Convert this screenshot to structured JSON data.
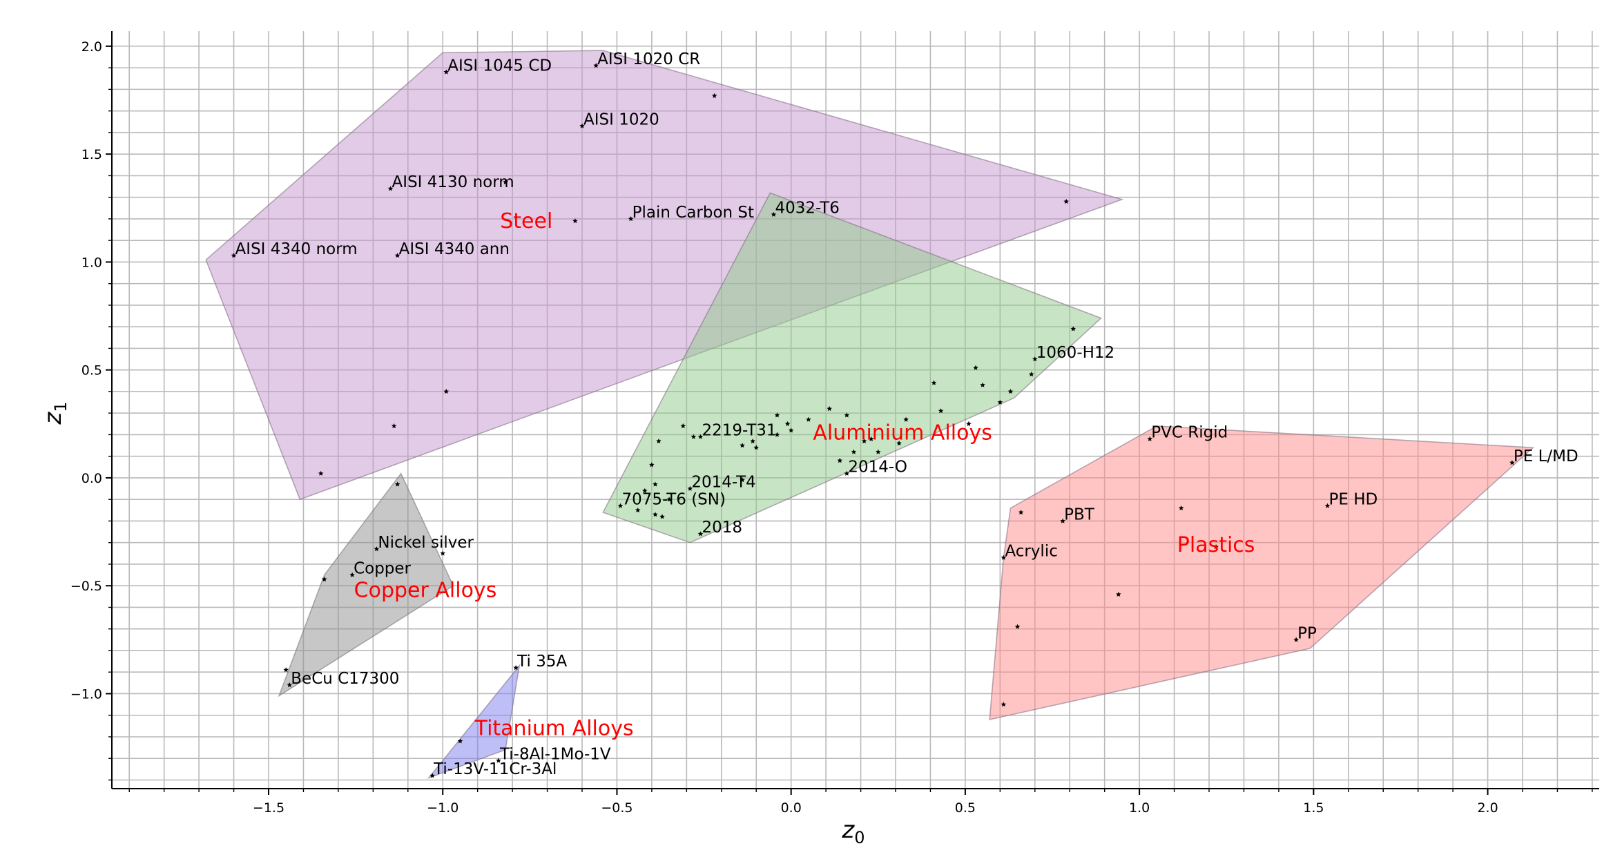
{
  "chart_data": {
    "type": "scatter",
    "title": "",
    "xlabel": "z",
    "xlabel_sub": "0",
    "ylabel": "z",
    "ylabel_sub": "1",
    "xlim": [
      -1.95,
      2.32
    ],
    "ylim": [
      -1.44,
      2.07
    ],
    "x_ticks": [
      -1.5,
      -1.0,
      -0.5,
      0.0,
      0.5,
      1.0,
      1.5,
      2.0
    ],
    "x_tick_labels": [
      "−1.5",
      "−1.0",
      "−0.5",
      "0.0",
      "0.5",
      "1.0",
      "1.5",
      "2.0"
    ],
    "y_ticks": [
      -1.0,
      -0.5,
      0.0,
      0.5,
      1.0,
      1.5,
      2.0
    ],
    "y_tick_labels": [
      "−1.0",
      "−0.5",
      "0.0",
      "0.5",
      "1.0",
      "1.5",
      "2.0"
    ],
    "grid": true,
    "regions": [
      {
        "name": "Steel",
        "color": "#c698cf",
        "label_pos": [
          -0.76,
          1.19
        ],
        "hull": [
          [
            -1.68,
            1.01
          ],
          [
            -1.0,
            1.97
          ],
          [
            -0.54,
            1.98
          ],
          [
            0.95,
            1.29
          ],
          [
            -0.31,
            0.55
          ],
          [
            -1.41,
            -0.1
          ]
        ]
      },
      {
        "name": "Aluminium Alloys",
        "color": "#90cc8a",
        "label_pos": [
          0.32,
          0.21
        ],
        "hull": [
          [
            -0.54,
            -0.16
          ],
          [
            -0.06,
            1.32
          ],
          [
            0.89,
            0.74
          ],
          [
            0.64,
            0.37
          ],
          [
            -0.29,
            -0.3
          ]
        ]
      },
      {
        "name": "Plastics",
        "color": "#ff8a8a",
        "label_pos": [
          1.22,
          -0.31
        ],
        "hull": [
          [
            0.57,
            -1.12
          ],
          [
            0.61,
            -0.37
          ],
          [
            0.63,
            -0.14
          ],
          [
            1.05,
            0.24
          ],
          [
            2.13,
            0.14
          ],
          [
            1.49,
            -0.79
          ]
        ]
      },
      {
        "name": "Copper Alloys",
        "color": "#8f8f8f",
        "label_pos": [
          -1.05,
          -0.52
        ],
        "hull": [
          [
            -1.47,
            -1.01
          ],
          [
            -1.34,
            -0.45
          ],
          [
            -1.12,
            0.02
          ],
          [
            -0.97,
            -0.5
          ]
        ]
      },
      {
        "name": "Titanium Alloys",
        "color": "#8080f0",
        "label_pos": [
          -0.68,
          -1.16
        ],
        "hull": [
          [
            -1.04,
            -1.39
          ],
          [
            -0.78,
            -0.87
          ],
          [
            -0.82,
            -1.26
          ]
        ]
      }
    ],
    "labeled_points": [
      {
        "label": "AISI 1045 CD",
        "x": -0.99,
        "y": 1.88
      },
      {
        "label": "AISI 1020 CR",
        "x": -0.56,
        "y": 1.91
      },
      {
        "label": "AISI 1020",
        "x": -0.6,
        "y": 1.63
      },
      {
        "label": "AISI 4130 norm",
        "x": -1.15,
        "y": 1.34
      },
      {
        "label": "Plain Carbon St",
        "x": -0.46,
        "y": 1.2
      },
      {
        "label": "4032-T6",
        "x": -0.05,
        "y": 1.22
      },
      {
        "label": "AISI 4340 norm",
        "x": -1.6,
        "y": 1.03
      },
      {
        "label": "AISI 4340 ann",
        "x": -1.13,
        "y": 1.03
      },
      {
        "label": "1060-H12",
        "x": 0.7,
        "y": 0.55
      },
      {
        "label": "2219-T31",
        "x": -0.26,
        "y": 0.19
      },
      {
        "label": "2014-O",
        "x": 0.16,
        "y": 0.02
      },
      {
        "label": "2014-T4",
        "x": -0.29,
        "y": -0.05
      },
      {
        "label": "7075-T6 (SN)",
        "x": -0.49,
        "y": -0.13
      },
      {
        "label": "2018",
        "x": -0.26,
        "y": -0.26
      },
      {
        "label": "PVC Rigid",
        "x": 1.03,
        "y": 0.18
      },
      {
        "label": "PE L/MD",
        "x": 2.07,
        "y": 0.07
      },
      {
        "label": "PBT",
        "x": 0.78,
        "y": -0.2
      },
      {
        "label": "PE HD",
        "x": 1.54,
        "y": -0.13
      },
      {
        "label": "Acrylic",
        "x": 0.61,
        "y": -0.37
      },
      {
        "label": "PP",
        "x": 1.45,
        "y": -0.75
      },
      {
        "label": "Nickel silver",
        "x": -1.19,
        "y": -0.33
      },
      {
        "label": "Copper",
        "x": -1.26,
        "y": -0.45
      },
      {
        "label": "BeCu C17300",
        "x": -1.44,
        "y": -0.96
      },
      {
        "label": "Ti 35A",
        "x": -0.79,
        "y": -0.88
      },
      {
        "label": "Ti-8Al-1Mo-1V",
        "x": -0.84,
        "y": -1.31
      },
      {
        "label": "Ti-13V-11Cr-3Al",
        "x": -1.03,
        "y": -1.38
      }
    ],
    "unlabeled_points": [
      {
        "x": -0.22,
        "y": 1.77
      },
      {
        "x": -0.82,
        "y": 1.37
      },
      {
        "x": -0.62,
        "y": 1.19
      },
      {
        "x": 0.79,
        "y": 1.28
      },
      {
        "x": -0.99,
        "y": 0.4
      },
      {
        "x": -1.14,
        "y": 0.24
      },
      {
        "x": -1.35,
        "y": 0.02
      },
      {
        "x": -1.13,
        "y": -0.03
      },
      {
        "x": 0.81,
        "y": 0.69
      },
      {
        "x": 0.53,
        "y": 0.51
      },
      {
        "x": 0.55,
        "y": 0.43
      },
      {
        "x": 0.41,
        "y": 0.44
      },
      {
        "x": 0.69,
        "y": 0.48
      },
      {
        "x": 0.63,
        "y": 0.4
      },
      {
        "x": 0.6,
        "y": 0.35
      },
      {
        "x": 0.43,
        "y": 0.31
      },
      {
        "x": 0.33,
        "y": 0.27
      },
      {
        "x": 0.11,
        "y": 0.32
      },
      {
        "x": 0.16,
        "y": 0.29
      },
      {
        "x": 0.05,
        "y": 0.27
      },
      {
        "x": -0.04,
        "y": 0.29
      },
      {
        "x": -0.01,
        "y": 0.25
      },
      {
        "x": 0.0,
        "y": 0.22
      },
      {
        "x": -0.04,
        "y": 0.2
      },
      {
        "x": -0.11,
        "y": 0.17
      },
      {
        "x": -0.14,
        "y": 0.15
      },
      {
        "x": -0.1,
        "y": 0.14
      },
      {
        "x": -0.31,
        "y": 0.24
      },
      {
        "x": -0.28,
        "y": 0.19
      },
      {
        "x": -0.38,
        "y": 0.17
      },
      {
        "x": 0.21,
        "y": 0.17
      },
      {
        "x": 0.23,
        "y": 0.18
      },
      {
        "x": 0.18,
        "y": 0.12
      },
      {
        "x": 0.25,
        "y": 0.12
      },
      {
        "x": 0.31,
        "y": 0.16
      },
      {
        "x": 0.51,
        "y": 0.25
      },
      {
        "x": 0.14,
        "y": 0.08
      },
      {
        "x": -0.4,
        "y": 0.06
      },
      {
        "x": -0.39,
        "y": -0.03
      },
      {
        "x": -0.42,
        "y": -0.06
      },
      {
        "x": -0.14,
        "y": -0.01
      },
      {
        "x": -0.35,
        "y": -0.1
      },
      {
        "x": -0.44,
        "y": -0.15
      },
      {
        "x": -0.39,
        "y": -0.17
      },
      {
        "x": -0.37,
        "y": -0.18
      },
      {
        "x": 0.66,
        "y": -0.16
      },
      {
        "x": 1.12,
        "y": -0.14
      },
      {
        "x": 1.22,
        "y": -0.32
      },
      {
        "x": 0.94,
        "y": -0.54
      },
      {
        "x": 0.65,
        "y": -0.69
      },
      {
        "x": 0.61,
        "y": -1.05
      },
      {
        "x": -1.34,
        "y": -0.47
      },
      {
        "x": -1.0,
        "y": -0.35
      },
      {
        "x": -1.45,
        "y": -0.89
      },
      {
        "x": -0.95,
        "y": -1.22
      }
    ]
  }
}
